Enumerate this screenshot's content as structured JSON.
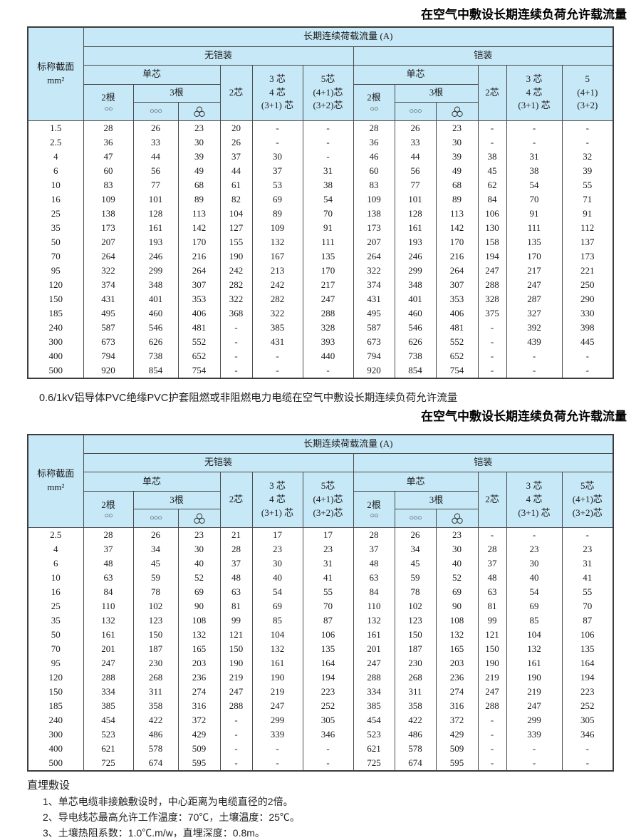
{
  "titles": {
    "air_title_1": "在空气中敷设长期连续负荷允许载流量",
    "between_caption": "0.6/1kV铝导体PVC绝缘PVC护套阻燃或非阻燃电力电缆在空气中敷设长期连续负荷允许流量",
    "air_title_2": "在空气中敷设长期连续负荷允许载流量"
  },
  "header": {
    "nominal_section": "标称截面",
    "nominal_unit": "mm²",
    "load_title": "长期连续荷载流量 (A)",
    "unarmored": "无铠装",
    "armored": "铠装",
    "single_core": "单芯",
    "wires2": "2根",
    "wires2_symbol": "○○",
    "wires3": "3根",
    "wires3_flat_symbol": "○○○",
    "wires3_trefoil_icon": "three-circle-trefoil",
    "core2": "2芯",
    "core34_lines": [
      "3 芯",
      "4 芯",
      "(3+1) 芯"
    ],
    "core5_lines": [
      "5芯",
      "(4+1)芯",
      "(3+2)芯"
    ],
    "core5_armored_short_lines": [
      "5",
      "(4+1)",
      "(3+2)"
    ]
  },
  "table1": {
    "rows": [
      {
        "size": "1.5",
        "values": [
          "28",
          "26",
          "23",
          "20",
          "-",
          "-",
          "28",
          "26",
          "23",
          "-",
          "-",
          "-"
        ]
      },
      {
        "size": "2.5",
        "values": [
          "36",
          "33",
          "30",
          "26",
          "-",
          "-",
          "36",
          "33",
          "30",
          "-",
          "-",
          "-"
        ]
      },
      {
        "size": "4",
        "values": [
          "47",
          "44",
          "39",
          "37",
          "30",
          "-",
          "46",
          "44",
          "39",
          "38",
          "31",
          "32"
        ]
      },
      {
        "size": "6",
        "values": [
          "60",
          "56",
          "49",
          "44",
          "37",
          "31",
          "60",
          "56",
          "49",
          "45",
          "38",
          "39"
        ]
      },
      {
        "size": "10",
        "values": [
          "83",
          "77",
          "68",
          "61",
          "53",
          "38",
          "83",
          "77",
          "68",
          "62",
          "54",
          "55"
        ]
      },
      {
        "size": "16",
        "values": [
          "109",
          "101",
          "89",
          "82",
          "69",
          "54",
          "109",
          "101",
          "89",
          "84",
          "70",
          "71"
        ]
      },
      {
        "size": "25",
        "values": [
          "138",
          "128",
          "113",
          "104",
          "89",
          "70",
          "138",
          "128",
          "113",
          "106",
          "91",
          "91"
        ]
      },
      {
        "size": "35",
        "values": [
          "173",
          "161",
          "142",
          "127",
          "109",
          "91",
          "173",
          "161",
          "142",
          "130",
          "111",
          "112"
        ]
      },
      {
        "size": "50",
        "values": [
          "207",
          "193",
          "170",
          "155",
          "132",
          "111",
          "207",
          "193",
          "170",
          "158",
          "135",
          "137"
        ]
      },
      {
        "size": "70",
        "values": [
          "264",
          "246",
          "216",
          "190",
          "167",
          "135",
          "264",
          "246",
          "216",
          "194",
          "170",
          "173"
        ]
      },
      {
        "size": "95",
        "values": [
          "322",
          "299",
          "264",
          "242",
          "213",
          "170",
          "322",
          "299",
          "264",
          "247",
          "217",
          "221"
        ]
      },
      {
        "size": "120",
        "values": [
          "374",
          "348",
          "307",
          "282",
          "242",
          "217",
          "374",
          "348",
          "307",
          "288",
          "247",
          "250"
        ]
      },
      {
        "size": "150",
        "values": [
          "431",
          "401",
          "353",
          "322",
          "282",
          "247",
          "431",
          "401",
          "353",
          "328",
          "287",
          "290"
        ]
      },
      {
        "size": "185",
        "values": [
          "495",
          "460",
          "406",
          "368",
          "322",
          "288",
          "495",
          "460",
          "406",
          "375",
          "327",
          "330"
        ]
      },
      {
        "size": "240",
        "values": [
          "587",
          "546",
          "481",
          "-",
          "385",
          "328",
          "587",
          "546",
          "481",
          "-",
          "392",
          "398"
        ]
      },
      {
        "size": "300",
        "values": [
          "673",
          "626",
          "552",
          "-",
          "431",
          "393",
          "673",
          "626",
          "552",
          "-",
          "439",
          "445"
        ]
      },
      {
        "size": "400",
        "values": [
          "794",
          "738",
          "652",
          "-",
          "-",
          "440",
          "794",
          "738",
          "652",
          "-",
          "-",
          "-"
        ]
      },
      {
        "size": "500",
        "values": [
          "920",
          "854",
          "754",
          "-",
          "-",
          "-",
          "920",
          "854",
          "754",
          "-",
          "-",
          "-"
        ]
      }
    ]
  },
  "table2": {
    "rows": [
      {
        "size": "2.5",
        "values": [
          "28",
          "26",
          "23",
          "21",
          "17",
          "17",
          "28",
          "26",
          "23",
          "-",
          "-",
          "-"
        ]
      },
      {
        "size": "4",
        "values": [
          "37",
          "34",
          "30",
          "28",
          "23",
          "23",
          "37",
          "34",
          "30",
          "28",
          "23",
          "23"
        ]
      },
      {
        "size": "6",
        "values": [
          "48",
          "45",
          "40",
          "37",
          "30",
          "31",
          "48",
          "45",
          "40",
          "37",
          "30",
          "31"
        ]
      },
      {
        "size": "10",
        "values": [
          "63",
          "59",
          "52",
          "48",
          "40",
          "41",
          "63",
          "59",
          "52",
          "48",
          "40",
          "41"
        ]
      },
      {
        "size": "16",
        "values": [
          "84",
          "78",
          "69",
          "63",
          "54",
          "55",
          "84",
          "78",
          "69",
          "63",
          "54",
          "55"
        ]
      },
      {
        "size": "25",
        "values": [
          "110",
          "102",
          "90",
          "81",
          "69",
          "70",
          "110",
          "102",
          "90",
          "81",
          "69",
          "70"
        ]
      },
      {
        "size": "35",
        "values": [
          "132",
          "123",
          "108",
          "99",
          "85",
          "87",
          "132",
          "123",
          "108",
          "99",
          "85",
          "87"
        ]
      },
      {
        "size": "50",
        "values": [
          "161",
          "150",
          "132",
          "121",
          "104",
          "106",
          "161",
          "150",
          "132",
          "121",
          "104",
          "106"
        ]
      },
      {
        "size": "70",
        "values": [
          "201",
          "187",
          "165",
          "150",
          "132",
          "135",
          "201",
          "187",
          "165",
          "150",
          "132",
          "135"
        ]
      },
      {
        "size": "95",
        "values": [
          "247",
          "230",
          "203",
          "190",
          "161",
          "164",
          "247",
          "230",
          "203",
          "190",
          "161",
          "164"
        ]
      },
      {
        "size": "120",
        "values": [
          "288",
          "268",
          "236",
          "219",
          "190",
          "194",
          "288",
          "268",
          "236",
          "219",
          "190",
          "194"
        ]
      },
      {
        "size": "150",
        "values": [
          "334",
          "311",
          "274",
          "247",
          "219",
          "223",
          "334",
          "311",
          "274",
          "247",
          "219",
          "223"
        ]
      },
      {
        "size": "185",
        "values": [
          "385",
          "358",
          "316",
          "288",
          "247",
          "252",
          "385",
          "358",
          "316",
          "288",
          "247",
          "252"
        ]
      },
      {
        "size": "240",
        "values": [
          "454",
          "422",
          "372",
          "-",
          "299",
          "305",
          "454",
          "422",
          "372",
          "-",
          "299",
          "305"
        ]
      },
      {
        "size": "300",
        "values": [
          "523",
          "486",
          "429",
          "-",
          "339",
          "346",
          "523",
          "486",
          "429",
          "-",
          "339",
          "346"
        ]
      },
      {
        "size": "400",
        "values": [
          "621",
          "578",
          "509",
          "-",
          "-",
          "-",
          "621",
          "578",
          "509",
          "-",
          "-",
          "-"
        ]
      },
      {
        "size": "500",
        "values": [
          "725",
          "674",
          "595",
          "-",
          "-",
          "-",
          "725",
          "674",
          "595",
          "-",
          "-",
          "-"
        ]
      }
    ]
  },
  "footer": {
    "heading": "直埋敷设",
    "notes": [
      "1、单芯电缆非接触敷设时，中心距离为电缆直径的2倍。",
      "2、导电线芯最高允许工作温度：70℃，土壤温度：25℃。",
      "3、土壤热阻系数：1.0℃.m/w，直埋深度：0.8m。"
    ]
  },
  "colors": {
    "header_bg": "#c7e8f7",
    "border": "#4a4a4a",
    "text": "#1a1a1a"
  }
}
